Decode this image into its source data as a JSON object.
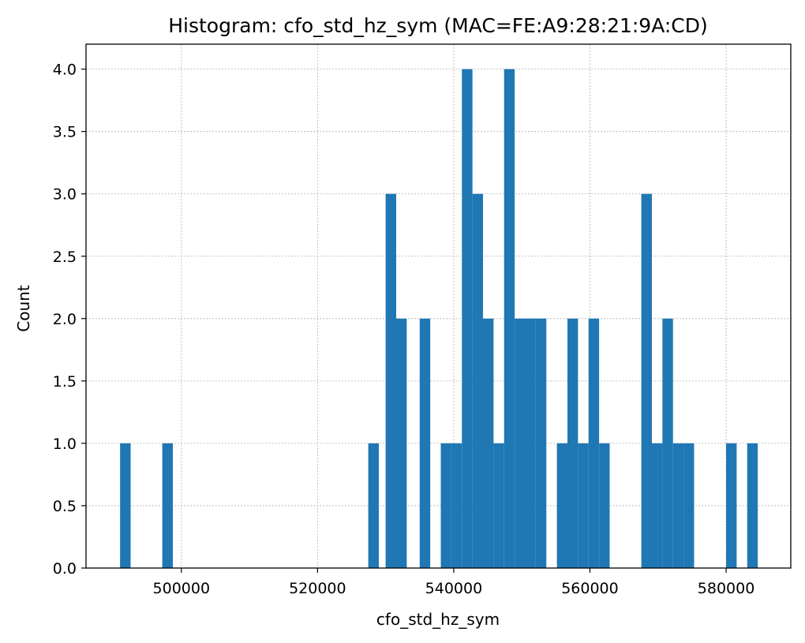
{
  "chart_data": {
    "type": "bar",
    "title": "Histogram: cfo_std_hz_sym (MAC=FE:A9:28:21:9A:CD)",
    "xlabel": "cfo_std_hz_sym",
    "ylabel": "Count",
    "xlim": [
      486000,
      589500
    ],
    "ylim": [
      0,
      4.2
    ],
    "bin_width": 1550,
    "xticks": [
      500000,
      520000,
      540000,
      560000,
      580000
    ],
    "yticks": [
      0.0,
      0.5,
      1.0,
      1.5,
      2.0,
      2.5,
      3.0,
      3.5,
      4.0
    ],
    "grid": true,
    "color": "#1f77b4",
    "bins": [
      {
        "x": 491000,
        "count": 1
      },
      {
        "x": 497200,
        "count": 1
      },
      {
        "x": 527450,
        "count": 1
      },
      {
        "x": 530000,
        "count": 3
      },
      {
        "x": 531550,
        "count": 2
      },
      {
        "x": 535000,
        "count": 2
      },
      {
        "x": 538100,
        "count": 1
      },
      {
        "x": 539650,
        "count": 1
      },
      {
        "x": 541200,
        "count": 4
      },
      {
        "x": 542750,
        "count": 3
      },
      {
        "x": 544300,
        "count": 2
      },
      {
        "x": 545850,
        "count": 1
      },
      {
        "x": 547400,
        "count": 4
      },
      {
        "x": 548950,
        "count": 2
      },
      {
        "x": 550500,
        "count": 2
      },
      {
        "x": 552050,
        "count": 2
      },
      {
        "x": 555150,
        "count": 1
      },
      {
        "x": 556700,
        "count": 2
      },
      {
        "x": 558250,
        "count": 1
      },
      {
        "x": 559800,
        "count": 2
      },
      {
        "x": 561350,
        "count": 1
      },
      {
        "x": 567550,
        "count": 3
      },
      {
        "x": 569100,
        "count": 1
      },
      {
        "x": 570650,
        "count": 2
      },
      {
        "x": 572200,
        "count": 1
      },
      {
        "x": 573750,
        "count": 1
      },
      {
        "x": 580000,
        "count": 1
      },
      {
        "x": 583100,
        "count": 1
      }
    ]
  }
}
